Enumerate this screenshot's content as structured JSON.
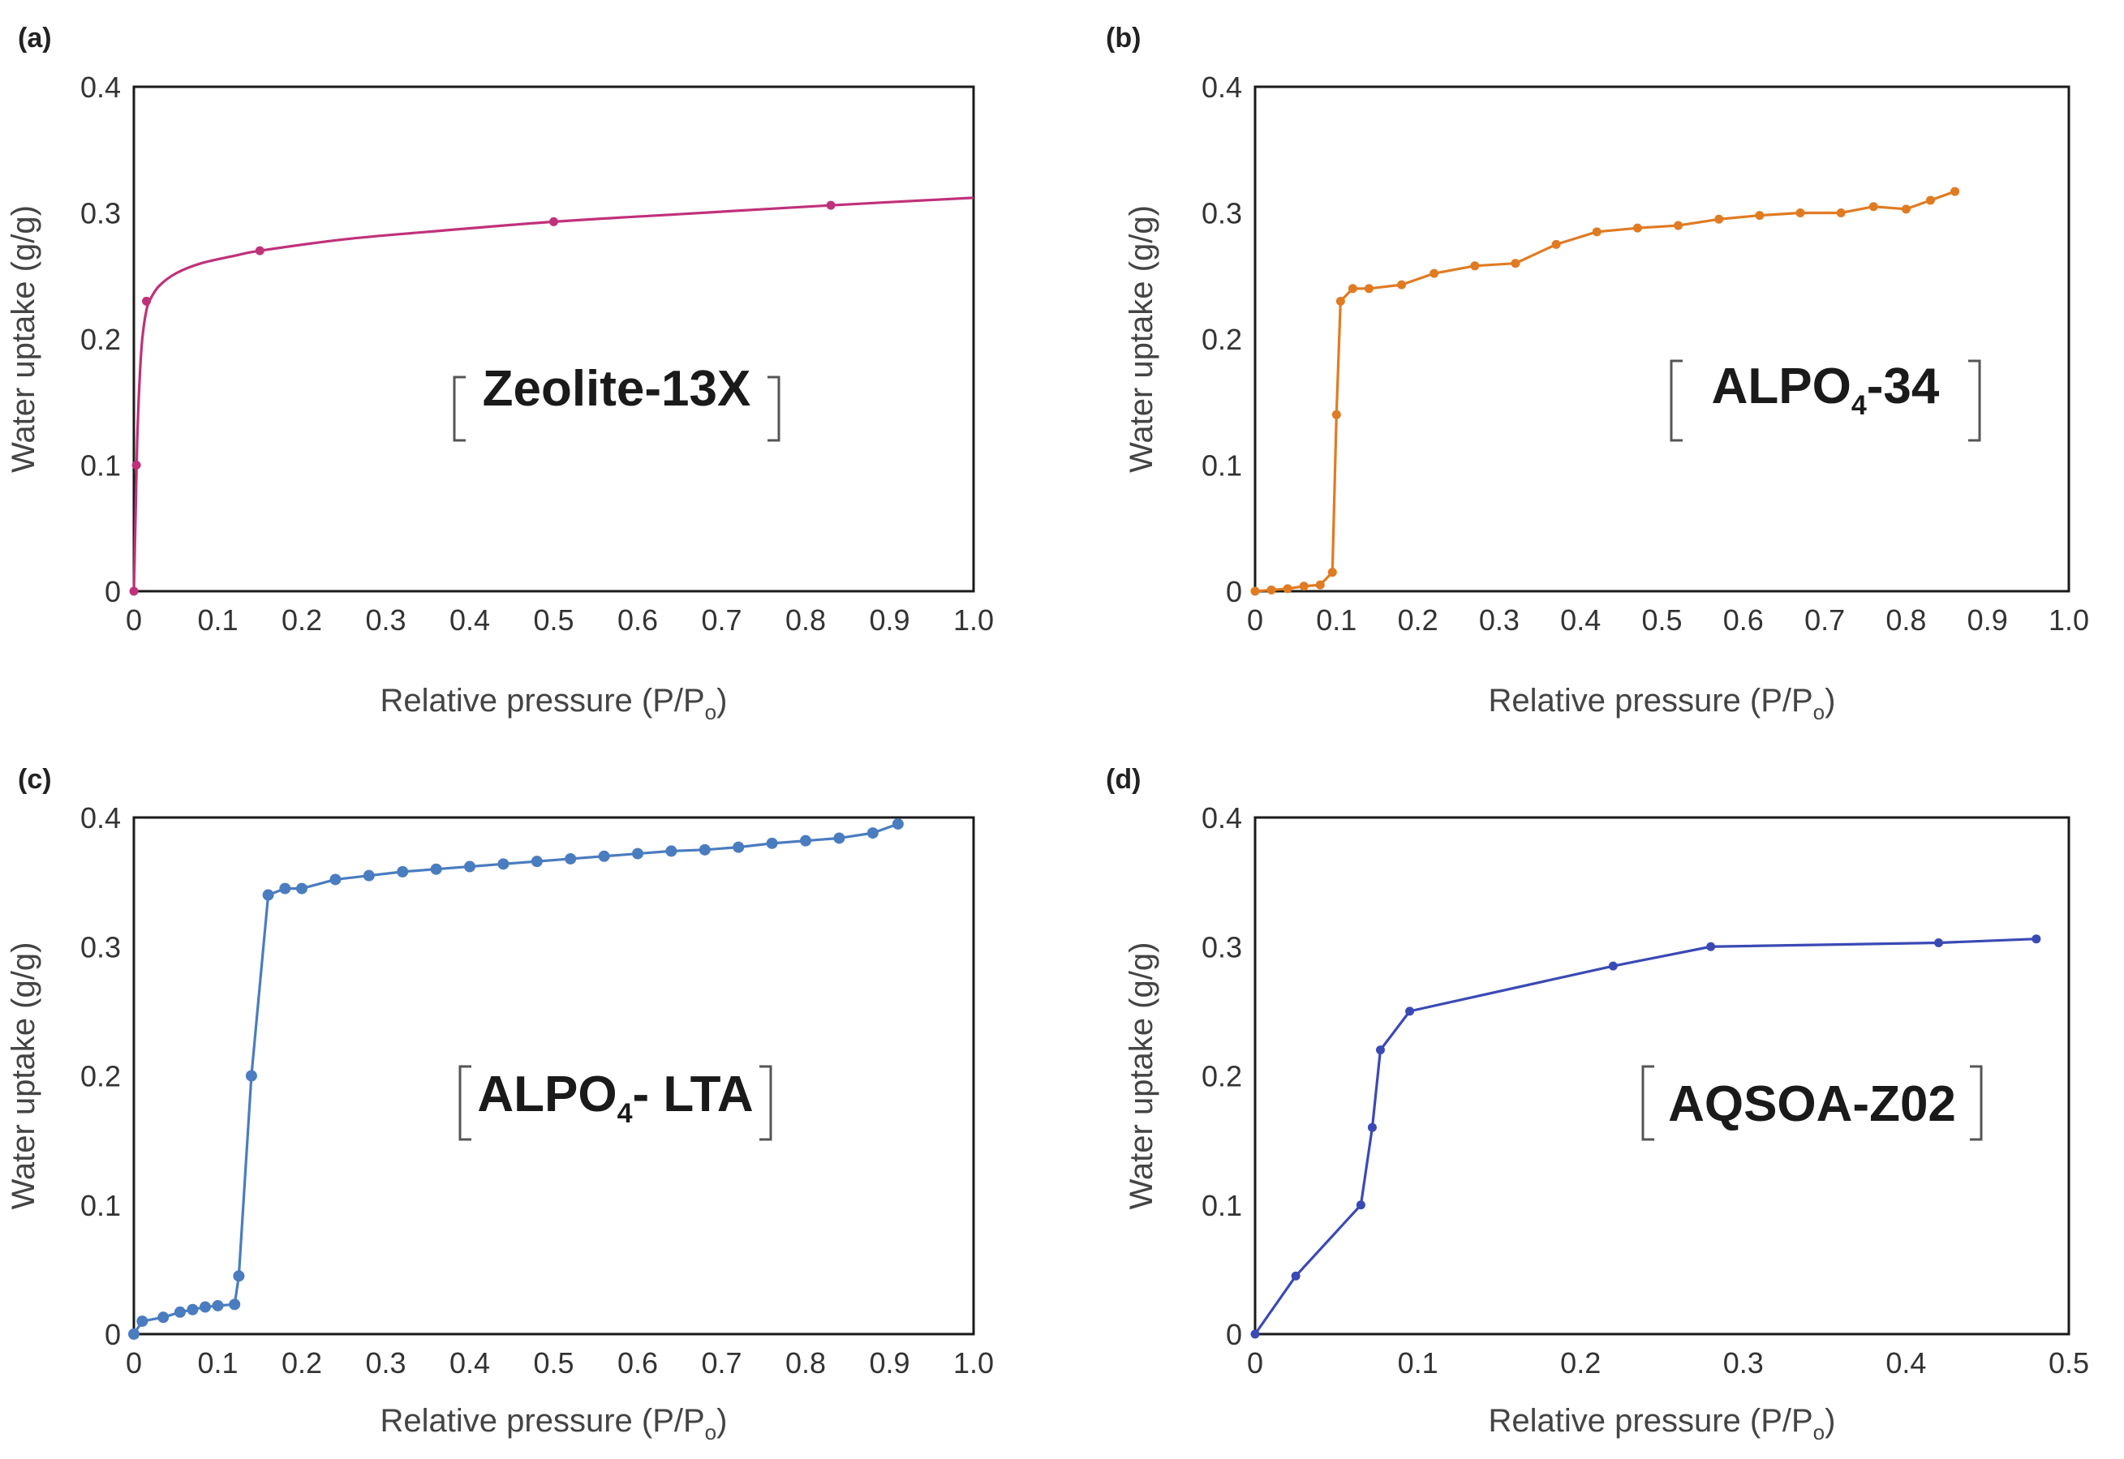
{
  "chart_data": [
    {
      "type": "line",
      "panel": "(a)",
      "label_main": "Zeolite-13X",
      "label_sub": "",
      "label_tail": "",
      "color": "#c0317a",
      "xlabel": "Relative pressure (P/P",
      "xlabel_sub": "o",
      "xlabel_close": ")",
      "ylabel": "Water uptake (g/g)",
      "xlim": [
        0,
        1.0
      ],
      "ylim": [
        0,
        0.4
      ],
      "xticks": [
        0,
        0.1,
        0.2,
        0.3,
        0.4,
        0.5,
        0.6,
        0.7,
        0.8,
        0.9,
        1.0
      ],
      "xtick_labels": [
        "0",
        "0.1",
        "0.2",
        "0.3",
        "0.4",
        "0.5",
        "0.6",
        "0.7",
        "0.8",
        "0.9",
        "1.0"
      ],
      "yticks": [
        0,
        0.1,
        0.2,
        0.3,
        0.4
      ],
      "ytick_labels": [
        "0",
        "0.1",
        "0.2",
        "0.3",
        "0.4"
      ],
      "series": [
        {
          "name": "Zeolite-13X",
          "points": [
            [
              0,
              0
            ],
            [
              0.003,
              0.1
            ],
            [
              0.015,
              0.23
            ],
            [
              0.15,
              0.27
            ],
            [
              0.5,
              0.293
            ],
            [
              0.83,
              0.306
            ]
          ],
          "curve": [
            [
              0,
              0
            ],
            [
              0.002,
              0.06
            ],
            [
              0.004,
              0.12
            ],
            [
              0.007,
              0.17
            ],
            [
              0.01,
              0.2
            ],
            [
              0.015,
              0.223
            ],
            [
              0.02,
              0.232
            ],
            [
              0.03,
              0.242
            ],
            [
              0.05,
              0.252
            ],
            [
              0.08,
              0.26
            ],
            [
              0.12,
              0.266
            ],
            [
              0.15,
              0.27
            ],
            [
              0.25,
              0.279
            ],
            [
              0.35,
              0.285
            ],
            [
              0.5,
              0.293
            ],
            [
              0.65,
              0.299
            ],
            [
              0.83,
              0.306
            ],
            [
              1.0,
              0.312
            ]
          ]
        }
      ]
    },
    {
      "type": "line",
      "panel": "(b)",
      "label_main": "ALPO",
      "label_sub": "4",
      "label_tail": "-34",
      "color": "#e07b22",
      "xlabel": "Relative pressure (P/P",
      "xlabel_sub": "o",
      "xlabel_close": ")",
      "ylabel": "Water uptake (g/g)",
      "xlim": [
        0,
        1.0
      ],
      "ylim": [
        0,
        0.4
      ],
      "xticks": [
        0,
        0.1,
        0.2,
        0.3,
        0.4,
        0.5,
        0.6,
        0.7,
        0.8,
        0.9,
        1.0
      ],
      "xtick_labels": [
        "0",
        "0.1",
        "0.2",
        "0.3",
        "0.4",
        "0.5",
        "0.6",
        "0.7",
        "0.8",
        "0.9",
        "1.0"
      ],
      "yticks": [
        0,
        0.1,
        0.2,
        0.3,
        0.4
      ],
      "ytick_labels": [
        "0",
        "0.1",
        "0.2",
        "0.3",
        "0.4"
      ],
      "series": [
        {
          "name": "ALPO4-34",
          "points": [
            [
              0,
              0
            ],
            [
              0.02,
              0.001
            ],
            [
              0.04,
              0.002
            ],
            [
              0.06,
              0.004
            ],
            [
              0.08,
              0.005
            ],
            [
              0.095,
              0.015
            ],
            [
              0.1,
              0.14
            ],
            [
              0.105,
              0.23
            ],
            [
              0.12,
              0.24
            ],
            [
              0.14,
              0.24
            ],
            [
              0.18,
              0.243
            ],
            [
              0.22,
              0.252
            ],
            [
              0.27,
              0.258
            ],
            [
              0.32,
              0.26
            ],
            [
              0.37,
              0.275
            ],
            [
              0.42,
              0.285
            ],
            [
              0.47,
              0.288
            ],
            [
              0.52,
              0.29
            ],
            [
              0.57,
              0.295
            ],
            [
              0.62,
              0.298
            ],
            [
              0.67,
              0.3
            ],
            [
              0.72,
              0.3
            ],
            [
              0.76,
              0.305
            ],
            [
              0.8,
              0.303
            ],
            [
              0.83,
              0.31
            ],
            [
              0.86,
              0.317
            ]
          ]
        }
      ]
    },
    {
      "type": "line",
      "panel": "(c)",
      "label_main": "ALPO",
      "label_sub": "4",
      "label_tail": "- LTA",
      "color": "#4a7cc0",
      "xlabel": "Relative pressure (P/P",
      "xlabel_sub": "o",
      "xlabel_close": ")",
      "ylabel": "Water uptake (g/g)",
      "xlim": [
        0,
        1.0
      ],
      "ylim": [
        0,
        0.4
      ],
      "xticks": [
        0,
        0.1,
        0.2,
        0.3,
        0.4,
        0.5,
        0.6,
        0.7,
        0.8,
        0.9,
        1.0
      ],
      "xtick_labels": [
        "0",
        "0.1",
        "0.2",
        "0.3",
        "0.4",
        "0.5",
        "0.6",
        "0.7",
        "0.8",
        "0.9",
        "1.0"
      ],
      "yticks": [
        0,
        0.1,
        0.2,
        0.3,
        0.4
      ],
      "ytick_labels": [
        "0",
        "0.1",
        "0.2",
        "0.3",
        "0.4"
      ],
      "series": [
        {
          "name": "ALPO4-LTA",
          "points": [
            [
              0,
              0
            ],
            [
              0.01,
              0.01
            ],
            [
              0.035,
              0.013
            ],
            [
              0.055,
              0.017
            ],
            [
              0.07,
              0.019
            ],
            [
              0.085,
              0.021
            ],
            [
              0.1,
              0.022
            ],
            [
              0.12,
              0.023
            ],
            [
              0.125,
              0.045
            ],
            [
              0.14,
              0.2
            ],
            [
              0.16,
              0.34
            ],
            [
              0.18,
              0.345
            ],
            [
              0.2,
              0.345
            ],
            [
              0.24,
              0.352
            ],
            [
              0.28,
              0.355
            ],
            [
              0.32,
              0.358
            ],
            [
              0.36,
              0.36
            ],
            [
              0.4,
              0.362
            ],
            [
              0.44,
              0.364
            ],
            [
              0.48,
              0.366
            ],
            [
              0.52,
              0.368
            ],
            [
              0.56,
              0.37
            ],
            [
              0.6,
              0.372
            ],
            [
              0.64,
              0.374
            ],
            [
              0.68,
              0.375
            ],
            [
              0.72,
              0.377
            ],
            [
              0.76,
              0.38
            ],
            [
              0.8,
              0.382
            ],
            [
              0.84,
              0.384
            ],
            [
              0.88,
              0.388
            ],
            [
              0.91,
              0.395
            ]
          ]
        }
      ]
    },
    {
      "type": "line",
      "panel": "(d)",
      "label_main": "AQSOA-Z02",
      "label_sub": "",
      "label_tail": "",
      "color": "#3a4ab5",
      "xlabel": "Relative pressure (P/P",
      "xlabel_sub": "o",
      "xlabel_close": ")",
      "ylabel": "Water uptake (g/g)",
      "xlim": [
        0,
        0.5
      ],
      "ylim": [
        0,
        0.4
      ],
      "xticks": [
        0,
        0.1,
        0.2,
        0.3,
        0.4,
        0.5
      ],
      "xtick_labels": [
        "0",
        "0.1",
        "0.2",
        "0.3",
        "0.4",
        "0.5"
      ],
      "yticks": [
        0,
        0.1,
        0.2,
        0.3,
        0.4
      ],
      "ytick_labels": [
        "0",
        "0.1",
        "0.2",
        "0.3",
        "0.4"
      ],
      "series": [
        {
          "name": "AQSOA-Z02",
          "points": [
            [
              0,
              0
            ],
            [
              0.025,
              0.045
            ],
            [
              0.065,
              0.1
            ],
            [
              0.072,
              0.16
            ],
            [
              0.077,
              0.22
            ],
            [
              0.095,
              0.25
            ],
            [
              0.22,
              0.285
            ],
            [
              0.28,
              0.3
            ],
            [
              0.42,
              0.303
            ],
            [
              0.48,
              0.306
            ]
          ]
        }
      ]
    }
  ]
}
